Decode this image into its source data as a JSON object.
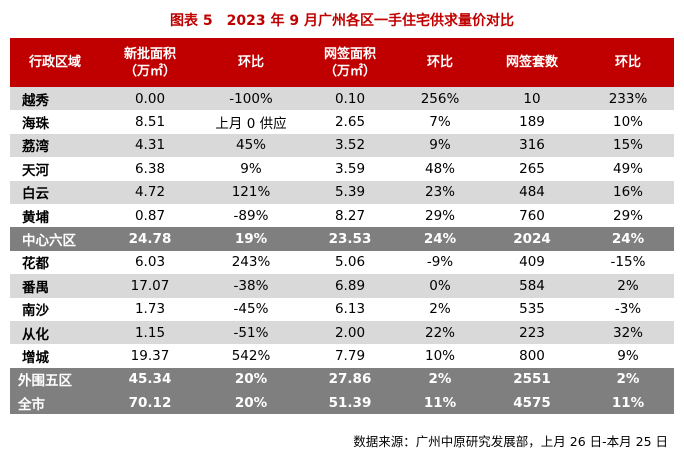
{
  "title": "图表 5　2023 年 9 月广州各区一手住宅供求量价对比",
  "headers": [
    {
      "line1": "行政区域",
      "line2": ""
    },
    {
      "line1": "新批面积",
      "line2": "（万㎡）"
    },
    {
      "line1": "环比",
      "line2": ""
    },
    {
      "line1": "网签面积",
      "line2": "（万㎡）"
    },
    {
      "line1": "环比",
      "line2": ""
    },
    {
      "line1": "网签套数",
      "line2": ""
    },
    {
      "line1": "环比",
      "line2": ""
    }
  ],
  "rows": [
    {
      "style": "gray",
      "cells": [
        "越秀",
        "0.00",
        "-100%",
        "0.10",
        "256%",
        "10",
        "233%"
      ]
    },
    {
      "style": "white",
      "cells": [
        "海珠",
        "8.51",
        "上月 0 供应",
        "2.65",
        "7%",
        "189",
        "10%"
      ]
    },
    {
      "style": "gray",
      "cells": [
        "荔湾",
        "4.31",
        "45%",
        "3.52",
        "9%",
        "316",
        "15%"
      ]
    },
    {
      "style": "white",
      "cells": [
        "天河",
        "6.38",
        "9%",
        "3.59",
        "48%",
        "265",
        "49%"
      ]
    },
    {
      "style": "gray",
      "cells": [
        "白云",
        "4.72",
        "121%",
        "5.39",
        "23%",
        "484",
        "16%"
      ]
    },
    {
      "style": "white",
      "cells": [
        "黄埔",
        "0.87",
        "-89%",
        "8.27",
        "29%",
        "760",
        "29%"
      ]
    },
    {
      "style": "dark",
      "cells": [
        "中心六区",
        "24.78",
        "19%",
        "23.53",
        "24%",
        "2024",
        "24%"
      ]
    },
    {
      "style": "white",
      "cells": [
        "花都",
        "6.03",
        "243%",
        "5.06",
        "-9%",
        "409",
        "-15%"
      ]
    },
    {
      "style": "gray",
      "cells": [
        "番禺",
        "17.07",
        "-38%",
        "6.89",
        "0%",
        "584",
        "2%"
      ]
    },
    {
      "style": "white",
      "cells": [
        "南沙",
        "1.73",
        "-45%",
        "6.13",
        "2%",
        "535",
        "-3%"
      ]
    },
    {
      "style": "gray",
      "cells": [
        "从化",
        "1.15",
        "-51%",
        "2.00",
        "22%",
        "223",
        "32%"
      ]
    },
    {
      "style": "white",
      "cells": [
        "增城",
        "19.37",
        "542%",
        "7.79",
        "10%",
        "800",
        "9%"
      ]
    },
    {
      "style": "total",
      "cells": [
        "外围五区",
        "45.34",
        "20%",
        "27.86",
        "2%",
        "2551",
        "2%"
      ]
    },
    {
      "style": "total",
      "cells": [
        "全市",
        "70.12",
        "20%",
        "51.39",
        "11%",
        "4575",
        "11%"
      ]
    }
  ],
  "source": "数据来源：广州中原研究发展部，上月 26 日-本月 25 日"
}
